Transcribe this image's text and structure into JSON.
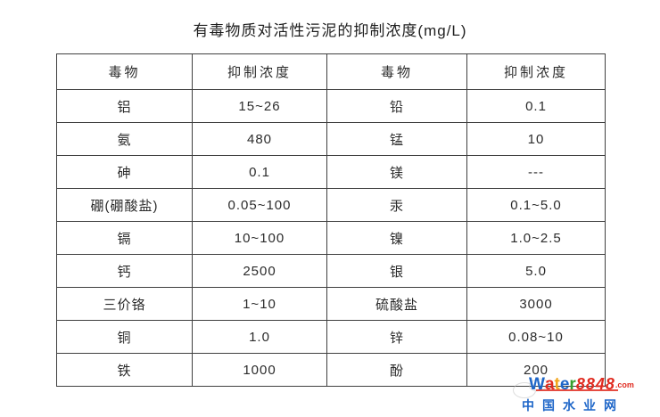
{
  "page": {
    "title": "有毒物质对活性污泥的抑制浓度(mg/L)"
  },
  "table": {
    "headers": [
      "毒物",
      "抑制浓度",
      "毒物",
      "抑制浓度"
    ],
    "rows": [
      [
        "铝",
        "15~26",
        "铅",
        "0.1"
      ],
      [
        "氨",
        "480",
        "锰",
        "10"
      ],
      [
        "砷",
        "0.1",
        "镁",
        "---"
      ],
      [
        "硼(硼酸盐)",
        "0.05~100",
        "汞",
        "0.1~5.0"
      ],
      [
        "镉",
        "10~100",
        "镍",
        "1.0~2.5"
      ],
      [
        "钙",
        "2500",
        "银",
        "5.0"
      ],
      [
        "三价铬",
        "1~10",
        "硫酸盐",
        "3000"
      ],
      [
        "铜",
        "1.0",
        "锌",
        "0.08~10"
      ],
      [
        "铁",
        "1000",
        "酚",
        "200"
      ]
    ]
  },
  "watermark": {
    "letters": [
      {
        "ch": "W",
        "color": "#1e66c8"
      },
      {
        "ch": "a",
        "color": "#e02b20"
      },
      {
        "ch": "t",
        "color": "#f2a51a"
      },
      {
        "ch": "e",
        "color": "#1e66c8"
      },
      {
        "ch": "r",
        "color": "#33a02c"
      }
    ],
    "number": "8848",
    "number_color": "#e02b20",
    "dotcom": ".com",
    "dotcom_color": "#e02b20",
    "site_name": "中国水业网",
    "site_name_color": "#1e66c8"
  }
}
